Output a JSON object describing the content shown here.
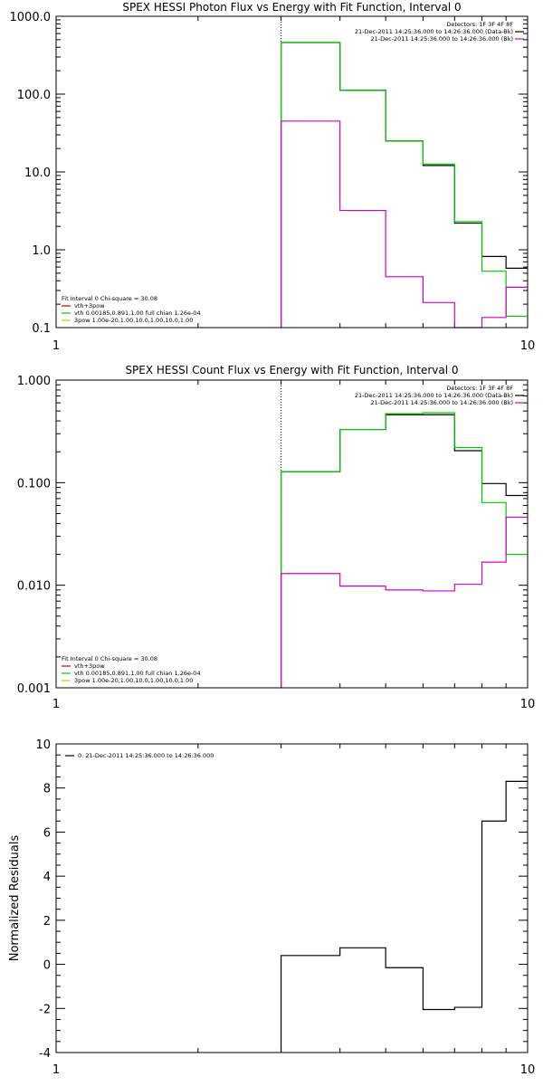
{
  "chart_data": [
    {
      "type": "line",
      "title": "SPEX HESSI Photon Flux vs Energy with Fit Function, Interval 0",
      "xlabel": "",
      "ylabel": "",
      "xscale": "log",
      "yscale": "log",
      "xlim": [
        1,
        10
      ],
      "ylim": [
        0.1,
        1000
      ],
      "x_ticks": [
        1,
        10
      ],
      "x_tick_labels": [
        "1",
        "10"
      ],
      "y_ticks": [
        0.1,
        1,
        10,
        100,
        1000
      ],
      "y_tick_labels": [
        "0.1",
        "1.0",
        "10.0",
        "100.0",
        "1000.0"
      ],
      "vline_x": 3,
      "vline_label": "",
      "legend_top": {
        "placement": "top-right",
        "lines": [
          {
            "text": "Detectors: 1F 3F 4F 8F",
            "color": ""
          },
          {
            "text": "21-Dec-2011 14:25:36.000 to 14:26:36.000 (Data-Bk)",
            "color": "#000000"
          },
          {
            "text": "21-Dec-2011 14:25:36.000 to 14:26:36.000 (Bk)",
            "color": "#cc00cc"
          }
        ]
      },
      "legend_bottom": {
        "placement": "bottom-left",
        "lines": [
          {
            "text": "Fit Interval 0   Chi-square = 30.08",
            "color": ""
          },
          {
            "text": "vth+3pow",
            "color": "#cc0000"
          },
          {
            "text": "vth 0.00185,0.891,1.00   full chian 1.26e-04",
            "color": "#00cc00"
          },
          {
            "text": "3pow 1.00e-20,1.00,10.0,1.00,10.0,1.00",
            "color": "#cccc00"
          }
        ]
      },
      "series": [
        {
          "name": "Data-Bk",
          "color": "#000000",
          "edges": [
            3,
            4,
            5,
            6,
            7,
            8,
            9,
            10
          ],
          "values": [
            460,
            112,
            25,
            12.1,
            2.2,
            0.82,
            0.58
          ]
        },
        {
          "name": "vth 0.00185,0.891,1.00",
          "color": "#00cc00",
          "edges": [
            3,
            4,
            5,
            6,
            7,
            8,
            9,
            10
          ],
          "values": [
            460,
            112,
            25,
            12.6,
            2.3,
            0.53,
            0.14
          ]
        },
        {
          "name": "Bk",
          "color": "#cc00cc",
          "edges": [
            3,
            4,
            5,
            6,
            7,
            8,
            9,
            10
          ],
          "values": [
            45,
            3.2,
            0.45,
            0.21,
            0.095,
            0.135,
            0.33
          ]
        }
      ]
    },
    {
      "type": "line",
      "title": "SPEX HESSI Count Flux vs Energy with Fit Function, Interval 0",
      "xlabel": "",
      "ylabel": "",
      "xscale": "log",
      "yscale": "log",
      "xlim": [
        1,
        10
      ],
      "ylim": [
        0.001,
        1
      ],
      "x_ticks": [
        1,
        10
      ],
      "x_tick_labels": [
        "1",
        "10"
      ],
      "y_ticks": [
        0.001,
        0.01,
        0.1,
        1
      ],
      "y_tick_labels": [
        "0.001",
        "0.010",
        "0.100",
        "1.000"
      ],
      "vline_x": 3,
      "vline_label": "",
      "legend_top": {
        "placement": "top-right",
        "lines": [
          {
            "text": "Detectors: 1F 3F 4F 8F",
            "color": ""
          },
          {
            "text": "21-Dec-2011 14:25:36.000 to 14:26:36.000 (Data-Bk)",
            "color": "#000000"
          },
          {
            "text": "21-Dec-2011 14:25:36.000 to 14:26:36.000 (Bk)",
            "color": "#cc00cc"
          }
        ]
      },
      "legend_bottom": {
        "placement": "bottom-left",
        "lines": [
          {
            "text": "Fit Interval 0   Chi-square = 30.08",
            "color": ""
          },
          {
            "text": "vth+3pow",
            "color": "#cc0000"
          },
          {
            "text": "vth 0.00185,0.891,1.00   full chian 1.26e-04",
            "color": "#00cc00"
          },
          {
            "text": "3pow 1.00e-20,1.00,10.0,1.00,10.0,1.00",
            "color": "#cccc00"
          }
        ]
      },
      "series": [
        {
          "name": "Data-Bk",
          "color": "#000000",
          "edges": [
            3,
            4,
            5,
            6,
            7,
            8,
            9,
            10
          ],
          "values": [
            0.128,
            0.33,
            0.46,
            0.46,
            0.205,
            0.098,
            0.075
          ]
        },
        {
          "name": "vth 0.00185,0.891,1.00",
          "color": "#00cc00",
          "edges": [
            3,
            4,
            5,
            6,
            7,
            8,
            9,
            10
          ],
          "values": [
            0.128,
            0.33,
            0.47,
            0.48,
            0.22,
            0.064,
            0.02
          ]
        },
        {
          "name": "Bk",
          "color": "#cc00cc",
          "edges": [
            3,
            4,
            5,
            6,
            7,
            8,
            9,
            10
          ],
          "values": [
            0.013,
            0.0098,
            0.009,
            0.0088,
            0.0102,
            0.0168,
            0.046
          ]
        }
      ]
    },
    {
      "type": "line",
      "title": "",
      "xlabel": "",
      "ylabel": "Normalized Residuals",
      "xscale": "log",
      "yscale": "linear",
      "xlim": [
        1,
        10
      ],
      "ylim": [
        -4,
        10
      ],
      "x_ticks": [
        1,
        10
      ],
      "x_tick_labels": [
        "1",
        "10"
      ],
      "y_ticks": [
        -4,
        -2,
        0,
        2,
        4,
        6,
        8,
        10
      ],
      "y_tick_labels": [
        "-4",
        "-2",
        "0",
        "2",
        "4",
        "6",
        "8",
        "10"
      ],
      "legend_top": {
        "placement": "top-left",
        "lines": [
          {
            "text": "0. 21-Dec-2011 14:25:36.000 to 14:26:36.000",
            "color": "#000000"
          }
        ]
      },
      "series": [
        {
          "name": "0. 21-Dec-2011 14:25:36.000 to 14:26:36.000",
          "color": "#000000",
          "edges": [
            3,
            4,
            5,
            6,
            7,
            8,
            9,
            10
          ],
          "values": [
            0.4,
            0.75,
            -0.15,
            -2.05,
            -1.95,
            6.5,
            8.3
          ]
        }
      ]
    }
  ]
}
